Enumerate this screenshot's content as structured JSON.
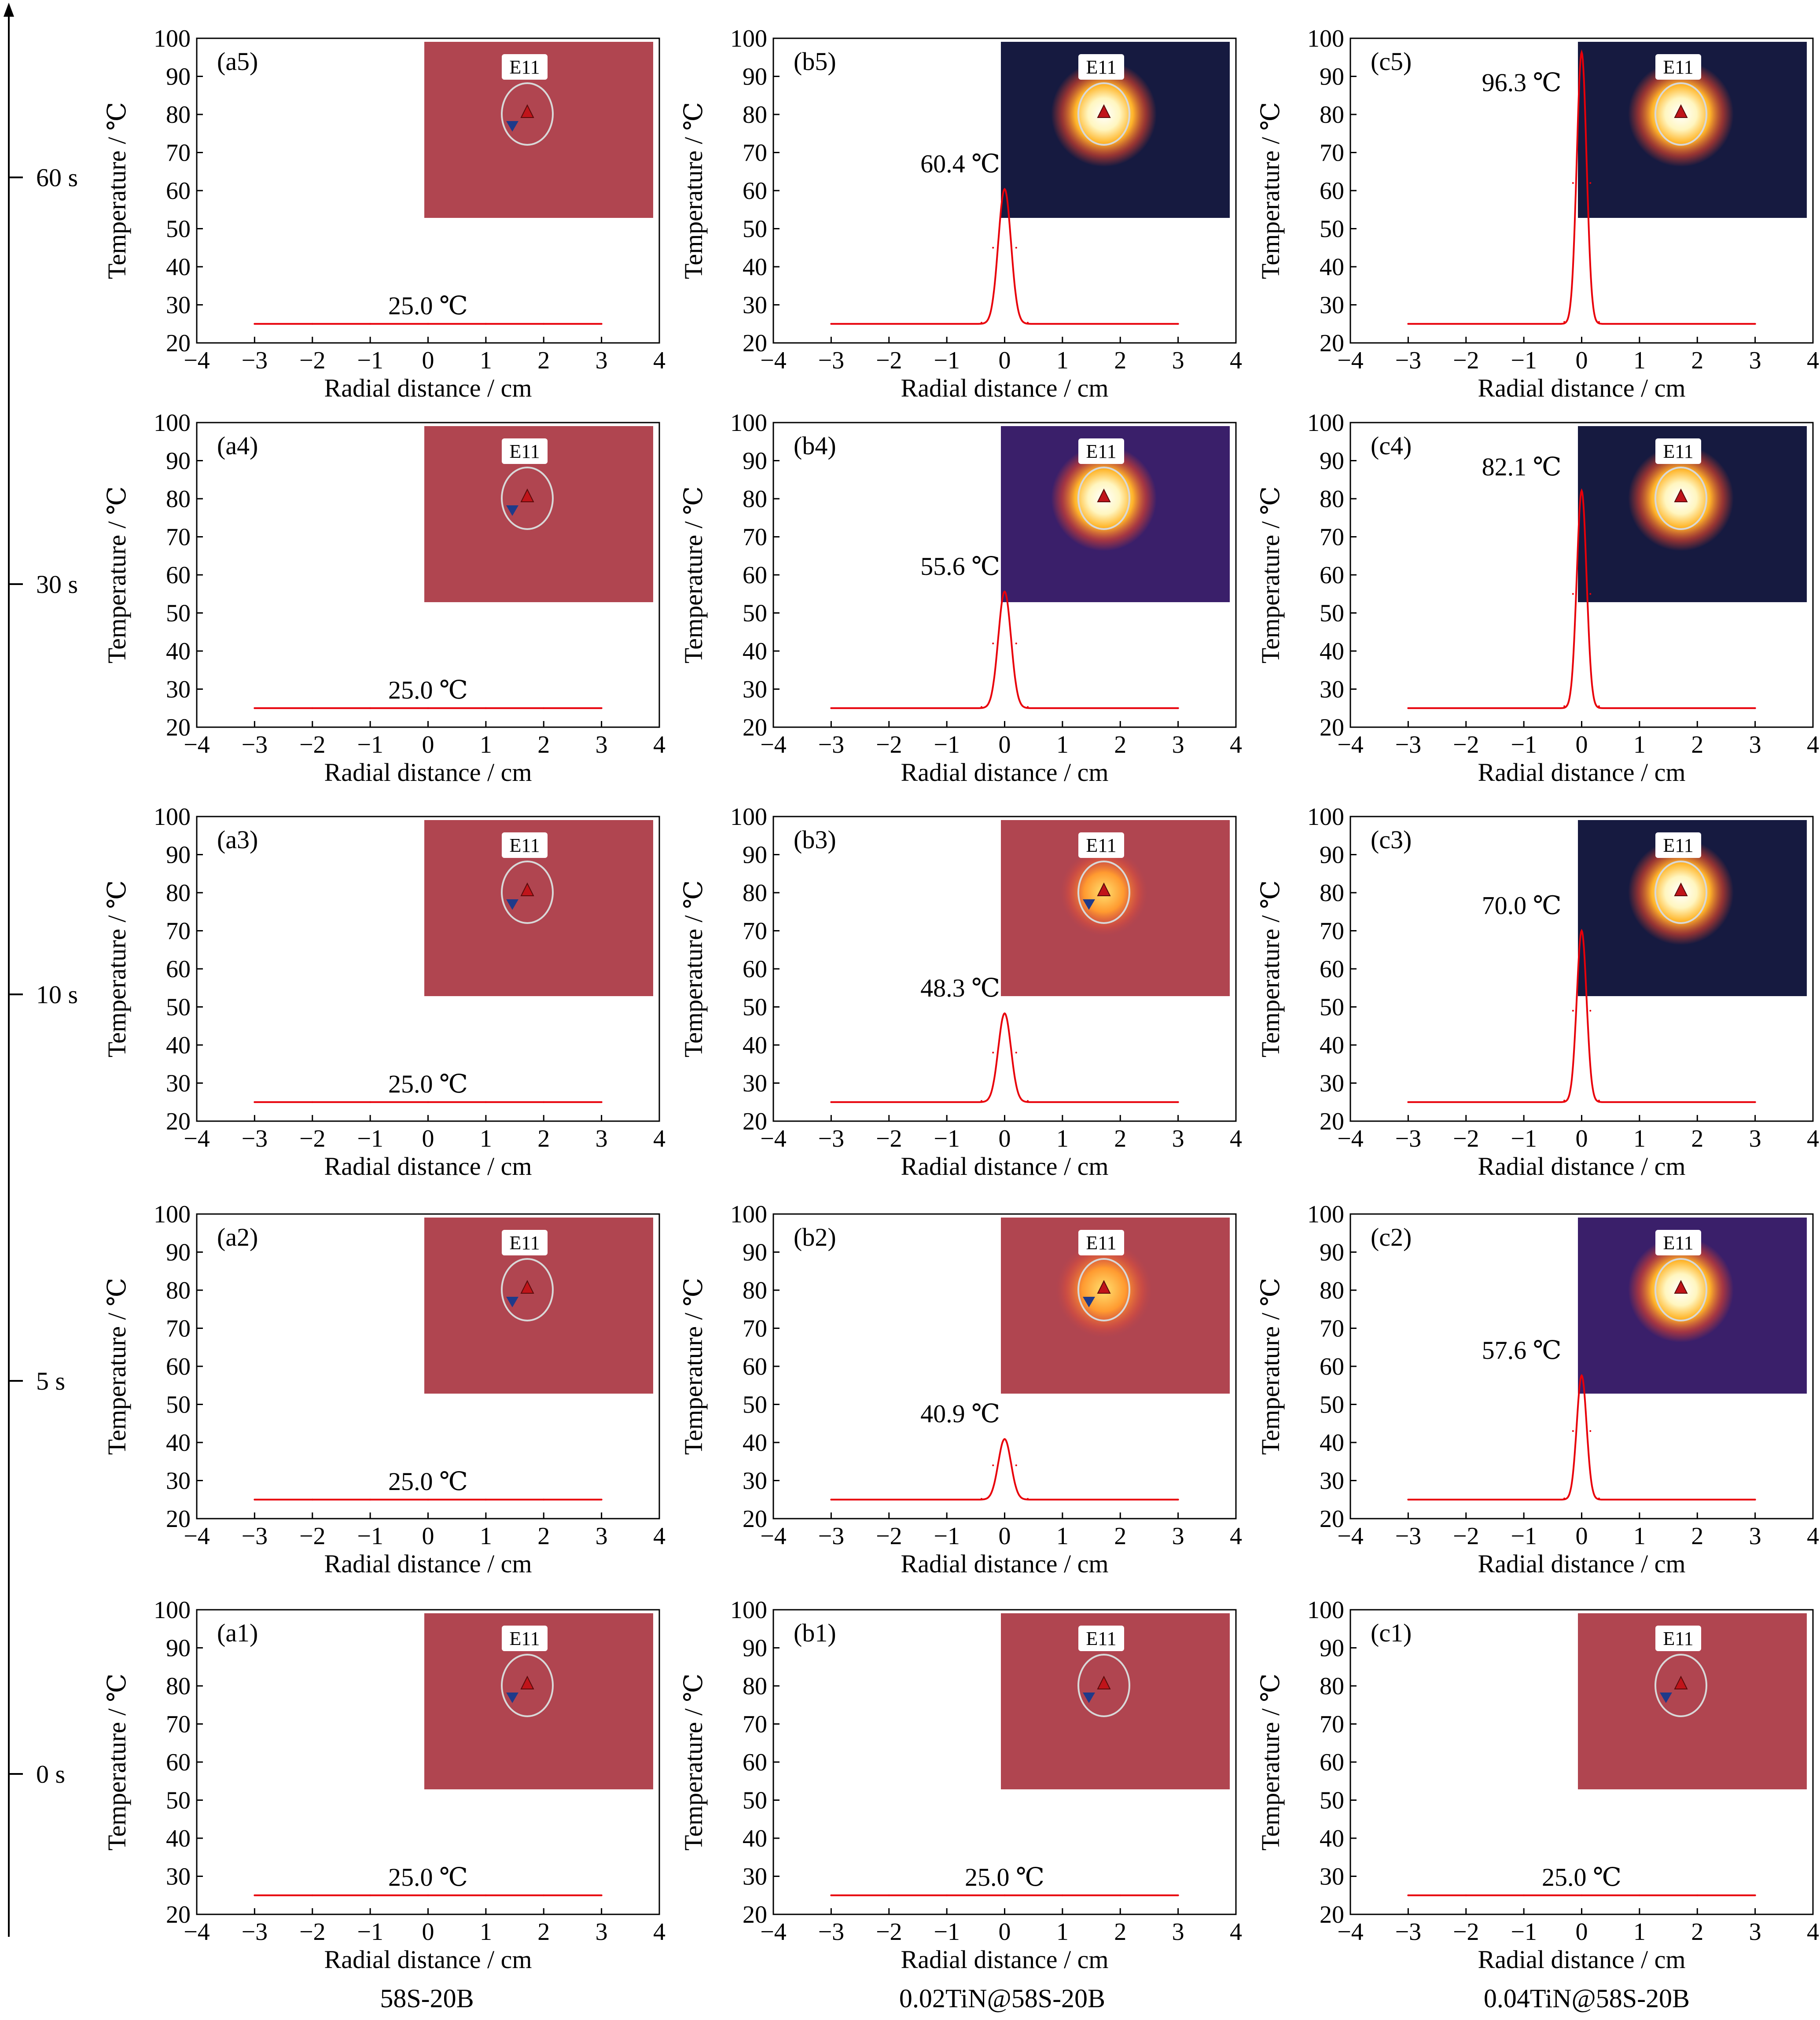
{
  "group_labels": [
    "58S-20B",
    "0.02TiN@58S-20B",
    "0.04TiN@58S-20B"
  ],
  "time_axis": {
    "labels": [
      "0 s",
      "5 s",
      "10 s",
      "30 s",
      "60 s"
    ]
  },
  "inset_label": "E11",
  "colors": {
    "curve": "#e8000a",
    "thermal_cool_bg": "#b04550",
    "thermal_dark_bg": "#161a40",
    "thermal_purple_bg": "#3a1f6a"
  },
  "chart_data": [
    {
      "id": "a5",
      "type": "line",
      "panel_label": "(a5)",
      "xlabel": "Radial distance / cm",
      "ylabel": "Temperature / ℃",
      "xlim": [
        -4,
        4
      ],
      "ylim": [
        20,
        100
      ],
      "xticks": [
        -4,
        -3,
        -2,
        -1,
        0,
        1,
        2,
        3,
        4
      ],
      "yticks": [
        20,
        30,
        40,
        50,
        60,
        70,
        80,
        90,
        100
      ],
      "x": [
        -3,
        -2,
        -1,
        0,
        1,
        2,
        3
      ],
      "y": [
        25,
        25,
        25,
        25,
        25,
        25,
        25
      ],
      "baseline": 25.0,
      "peak": 25.0,
      "annotation": "25.0 ℃",
      "inset": {
        "label": "E11",
        "theme": "cool",
        "hot": 0
      }
    },
    {
      "id": "b5",
      "type": "line",
      "panel_label": "(b5)",
      "xlabel": "Radial distance / cm",
      "ylabel": "Temperature / ℃",
      "xlim": [
        -4,
        4
      ],
      "ylim": [
        20,
        100
      ],
      "xticks": [
        -4,
        -3,
        -2,
        -1,
        0,
        1,
        2,
        3,
        4
      ],
      "yticks": [
        20,
        30,
        40,
        50,
        60,
        70,
        80,
        90,
        100
      ],
      "x": [
        -3,
        -0.4,
        -0.2,
        0,
        0.2,
        0.4,
        3
      ],
      "y": [
        25,
        25.3,
        45,
        60.4,
        45,
        25.3,
        25
      ],
      "baseline": 25.0,
      "peak": 60.4,
      "annotation": "60.4 ℃",
      "inset": {
        "label": "E11",
        "theme": "dark",
        "hot": 1
      }
    },
    {
      "id": "c5",
      "type": "line",
      "panel_label": "(c5)",
      "xlabel": "Radial distance / cm",
      "ylabel": "Temperature / ℃",
      "xlim": [
        -4,
        4
      ],
      "ylim": [
        20,
        100
      ],
      "xticks": [
        -4,
        -3,
        -2,
        -1,
        0,
        1,
        2,
        3,
        4
      ],
      "yticks": [
        20,
        30,
        40,
        50,
        60,
        70,
        80,
        90,
        100
      ],
      "x": [
        -3,
        -0.3,
        -0.15,
        0,
        0.15,
        0.3,
        3
      ],
      "y": [
        25,
        25.5,
        62,
        96.3,
        62,
        25.5,
        25
      ],
      "baseline": 25.0,
      "peak": 96.3,
      "annotation": "96.3 ℃",
      "inset": {
        "label": "E11",
        "theme": "dark",
        "hot": 1
      }
    },
    {
      "id": "a4",
      "type": "line",
      "panel_label": "(a4)",
      "xlabel": "Radial distance / cm",
      "ylabel": "Temperature / ℃",
      "xlim": [
        -4,
        4
      ],
      "ylim": [
        20,
        100
      ],
      "xticks": [
        -4,
        -3,
        -2,
        -1,
        0,
        1,
        2,
        3,
        4
      ],
      "yticks": [
        20,
        30,
        40,
        50,
        60,
        70,
        80,
        90,
        100
      ],
      "x": [
        -3,
        -2,
        -1,
        0,
        1,
        2,
        3
      ],
      "y": [
        25,
        25,
        25,
        25,
        25,
        25,
        25
      ],
      "baseline": 25.0,
      "peak": 25.0,
      "annotation": "25.0 ℃",
      "inset": {
        "label": "E11",
        "theme": "cool",
        "hot": 0
      }
    },
    {
      "id": "b4",
      "type": "line",
      "panel_label": "(b4)",
      "xlabel": "Radial distance / cm",
      "ylabel": "Temperature / ℃",
      "xlim": [
        -4,
        4
      ],
      "ylim": [
        20,
        100
      ],
      "xticks": [
        -4,
        -3,
        -2,
        -1,
        0,
        1,
        2,
        3,
        4
      ],
      "yticks": [
        20,
        30,
        40,
        50,
        60,
        70,
        80,
        90,
        100
      ],
      "x": [
        -3,
        -0.4,
        -0.2,
        0,
        0.2,
        0.4,
        3
      ],
      "y": [
        25,
        25.3,
        42,
        55.6,
        42,
        25.3,
        25
      ],
      "baseline": 25.0,
      "peak": 55.6,
      "annotation": "55.6 ℃",
      "inset": {
        "label": "E11",
        "theme": "purple",
        "hot": 1
      }
    },
    {
      "id": "c4",
      "type": "line",
      "panel_label": "(c4)",
      "xlabel": "Radial distance / cm",
      "ylabel": "Temperature / ℃",
      "xlim": [
        -4,
        4
      ],
      "ylim": [
        20,
        100
      ],
      "xticks": [
        -4,
        -3,
        -2,
        -1,
        0,
        1,
        2,
        3,
        4
      ],
      "yticks": [
        20,
        30,
        40,
        50,
        60,
        70,
        80,
        90,
        100
      ],
      "x": [
        -3,
        -0.3,
        -0.15,
        0,
        0.15,
        0.3,
        3
      ],
      "y": [
        25,
        25.5,
        55,
        82.1,
        55,
        25.5,
        25
      ],
      "baseline": 25.0,
      "peak": 82.1,
      "annotation": "82.1 ℃",
      "inset": {
        "label": "E11",
        "theme": "dark",
        "hot": 1
      }
    },
    {
      "id": "a3",
      "type": "line",
      "panel_label": "(a3)",
      "xlabel": "Radial distance / cm",
      "ylabel": "Temperature / ℃",
      "xlim": [
        -4,
        4
      ],
      "ylim": [
        20,
        100
      ],
      "xticks": [
        -4,
        -3,
        -2,
        -1,
        0,
        1,
        2,
        3,
        4
      ],
      "yticks": [
        20,
        30,
        40,
        50,
        60,
        70,
        80,
        90,
        100
      ],
      "x": [
        -3,
        -2,
        -1,
        0,
        1,
        2,
        3
      ],
      "y": [
        25,
        25,
        25,
        25,
        25,
        25,
        25
      ],
      "baseline": 25.0,
      "peak": 25.0,
      "annotation": "25.0 ℃",
      "inset": {
        "label": "E11",
        "theme": "cool",
        "hot": 0
      }
    },
    {
      "id": "b3",
      "type": "line",
      "panel_label": "(b3)",
      "xlabel": "Radial distance / cm",
      "ylabel": "Temperature / ℃",
      "xlim": [
        -4,
        4
      ],
      "ylim": [
        20,
        100
      ],
      "xticks": [
        -4,
        -3,
        -2,
        -1,
        0,
        1,
        2,
        3,
        4
      ],
      "yticks": [
        20,
        30,
        40,
        50,
        60,
        70,
        80,
        90,
        100
      ],
      "x": [
        -3,
        -0.4,
        -0.2,
        0,
        0.2,
        0.4,
        3
      ],
      "y": [
        25,
        25.3,
        38,
        48.3,
        38,
        25.3,
        25
      ],
      "baseline": 25.0,
      "peak": 48.3,
      "annotation": "48.3 ℃",
      "inset": {
        "label": "E11",
        "theme": "warm",
        "hot": 0.6
      }
    },
    {
      "id": "c3",
      "type": "line",
      "panel_label": "(c3)",
      "xlabel": "Radial distance / cm",
      "ylabel": "Temperature / ℃",
      "xlim": [
        -4,
        4
      ],
      "ylim": [
        20,
        100
      ],
      "xticks": [
        -4,
        -3,
        -2,
        -1,
        0,
        1,
        2,
        3,
        4
      ],
      "yticks": [
        20,
        30,
        40,
        50,
        60,
        70,
        80,
        90,
        100
      ],
      "x": [
        -3,
        -0.3,
        -0.15,
        0,
        0.15,
        0.3,
        3
      ],
      "y": [
        25,
        25.4,
        49,
        70.0,
        49,
        25.4,
        25
      ],
      "baseline": 25.0,
      "peak": 70.0,
      "annotation": "70.0 ℃",
      "inset": {
        "label": "E11",
        "theme": "dark",
        "hot": 1
      }
    },
    {
      "id": "a2",
      "type": "line",
      "panel_label": "(a2)",
      "xlabel": "Radial distance / cm",
      "ylabel": "Temperature / ℃",
      "xlim": [
        -4,
        4
      ],
      "ylim": [
        20,
        100
      ],
      "xticks": [
        -4,
        -3,
        -2,
        -1,
        0,
        1,
        2,
        3,
        4
      ],
      "yticks": [
        20,
        30,
        40,
        50,
        60,
        70,
        80,
        90,
        100
      ],
      "x": [
        -3,
        -2,
        -1,
        0,
        1,
        2,
        3
      ],
      "y": [
        25,
        25,
        25,
        25,
        25,
        25,
        25
      ],
      "baseline": 25.0,
      "peak": 25.0,
      "annotation": "25.0 ℃",
      "inset": {
        "label": "E11",
        "theme": "cool",
        "hot": 0
      }
    },
    {
      "id": "b2",
      "type": "line",
      "panel_label": "(b2)",
      "xlabel": "Radial distance / cm",
      "ylabel": "Temperature / ℃",
      "xlim": [
        -4,
        4
      ],
      "ylim": [
        20,
        100
      ],
      "xticks": [
        -4,
        -3,
        -2,
        -1,
        0,
        1,
        2,
        3,
        4
      ],
      "yticks": [
        20,
        30,
        40,
        50,
        60,
        70,
        80,
        90,
        100
      ],
      "x": [
        -3,
        -0.4,
        -0.2,
        0,
        0.2,
        0.4,
        3
      ],
      "y": [
        25,
        25.2,
        34,
        40.9,
        34,
        25.2,
        25
      ],
      "baseline": 25.0,
      "peak": 40.9,
      "annotation": "40.9 ℃",
      "inset": {
        "label": "E11",
        "theme": "warm",
        "hot": 0.8
      }
    },
    {
      "id": "c2",
      "type": "line",
      "panel_label": "(c2)",
      "xlabel": "Radial distance / cm",
      "ylabel": "Temperature / ℃",
      "xlim": [
        -4,
        4
      ],
      "ylim": [
        20,
        100
      ],
      "xticks": [
        -4,
        -3,
        -2,
        -1,
        0,
        1,
        2,
        3,
        4
      ],
      "yticks": [
        20,
        30,
        40,
        50,
        60,
        70,
        80,
        90,
        100
      ],
      "x": [
        -3,
        -0.3,
        -0.15,
        0,
        0.15,
        0.3,
        3
      ],
      "y": [
        25,
        25.3,
        43,
        57.6,
        43,
        25.3,
        25
      ],
      "baseline": 25.0,
      "peak": 57.6,
      "annotation": "57.6 ℃",
      "inset": {
        "label": "E11",
        "theme": "purple",
        "hot": 1
      }
    },
    {
      "id": "a1",
      "type": "line",
      "panel_label": "(a1)",
      "xlabel": "Radial distance / cm",
      "ylabel": "Temperature / ℃",
      "xlim": [
        -4,
        4
      ],
      "ylim": [
        20,
        100
      ],
      "xticks": [
        -4,
        -3,
        -2,
        -1,
        0,
        1,
        2,
        3,
        4
      ],
      "yticks": [
        20,
        30,
        40,
        50,
        60,
        70,
        80,
        90,
        100
      ],
      "x": [
        -3,
        -2,
        -1,
        0,
        1,
        2,
        3
      ],
      "y": [
        25,
        25,
        25,
        25,
        25,
        25,
        25
      ],
      "baseline": 25.0,
      "peak": 25.0,
      "annotation": "25.0 ℃",
      "inset": {
        "label": "E11",
        "theme": "cool",
        "hot": 0
      }
    },
    {
      "id": "b1",
      "type": "line",
      "panel_label": "(b1)",
      "xlabel": "Radial distance / cm",
      "ylabel": "Temperature / ℃",
      "xlim": [
        -4,
        4
      ],
      "ylim": [
        20,
        100
      ],
      "xticks": [
        -4,
        -3,
        -2,
        -1,
        0,
        1,
        2,
        3,
        4
      ],
      "yticks": [
        20,
        30,
        40,
        50,
        60,
        70,
        80,
        90,
        100
      ],
      "x": [
        -3,
        -2,
        -1,
        0,
        1,
        2,
        3
      ],
      "y": [
        25,
        25,
        25,
        25,
        25,
        25,
        25
      ],
      "baseline": 25.0,
      "peak": 25.0,
      "annotation": "25.0 ℃",
      "inset": {
        "label": "E11",
        "theme": "cool",
        "hot": 0
      }
    },
    {
      "id": "c1",
      "type": "line",
      "panel_label": "(c1)",
      "xlabel": "Radial distance / cm",
      "ylabel": "Temperature / ℃",
      "xlim": [
        -4,
        4
      ],
      "ylim": [
        20,
        100
      ],
      "xticks": [
        -4,
        -3,
        -2,
        -1,
        0,
        1,
        2,
        3,
        4
      ],
      "yticks": [
        20,
        30,
        40,
        50,
        60,
        70,
        80,
        90,
        100
      ],
      "x": [
        -3,
        -2,
        -1,
        0,
        1,
        2,
        3
      ],
      "y": [
        25,
        25,
        25,
        25,
        25,
        25,
        25
      ],
      "baseline": 25.0,
      "peak": 25.0,
      "annotation": "25.0 ℃",
      "inset": {
        "label": "E11",
        "theme": "cool",
        "hot": 0
      }
    }
  ]
}
